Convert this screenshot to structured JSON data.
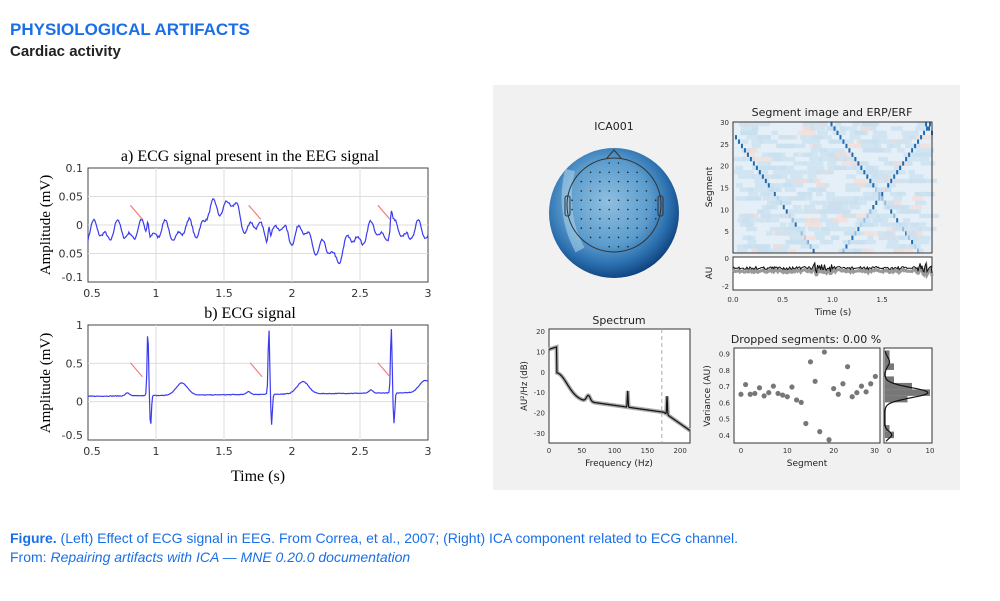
{
  "slide": {
    "title": "PHYSIOLOGICAL ARTIFACTS",
    "subtitle": "Cardiac activity"
  },
  "left_figure": {
    "panel_a": {
      "title": "a)  ECG signal present in the EEG signal",
      "ylabel": "Amplitude (mV)",
      "yticks": [
        "0.1",
        "0.05",
        "0",
        "0.05",
        "-0.1"
      ],
      "xticks": [
        "0.5",
        "1",
        "1.5",
        "2",
        "2.5",
        "3"
      ]
    },
    "panel_b": {
      "title": "b) ECG signal",
      "ylabel": "Amplitude (mV)",
      "yticks": [
        "1",
        "0.5",
        "0",
        "-0.5"
      ],
      "xticks": [
        "0.5",
        "1",
        "1.5",
        "2",
        "2.5",
        "3"
      ],
      "xlabel": "Time (s)"
    },
    "line_color": "#3b3bf0",
    "arrow_color": "#f08080"
  },
  "right_figure": {
    "topomap": {
      "title": "ICA001"
    },
    "segment_image": {
      "title": "Segment image and ERP/ERF",
      "ylabel": "Segment",
      "yticks": [
        "30",
        "25",
        "20",
        "15",
        "10",
        "5"
      ],
      "erp_ylabel": "AU",
      "erp_yticks": [
        "0",
        "-2"
      ],
      "xticks": [
        "0.0",
        "0.5",
        "1.0",
        "1.5"
      ],
      "xlabel": "Time (s)"
    },
    "spectrum": {
      "title": "Spectrum",
      "ylabel": "AU²/Hz (dB)",
      "yticks": [
        "20",
        "10",
        "0",
        "-10",
        "-20",
        "-30"
      ],
      "xticks": [
        "0",
        "50",
        "100",
        "150",
        "200"
      ],
      "xlabel": "Frequency (Hz)"
    },
    "dropped": {
      "title": "Dropped segments: 0.00 %",
      "ylabel": "Variance (AU)",
      "yticks": [
        "0.9",
        "0.8",
        "0.7",
        "0.6",
        "0.5",
        "0.4"
      ],
      "xticks": [
        "0",
        "10",
        "20",
        "30"
      ],
      "xlabel": "Segment",
      "hist_xticks": [
        "0",
        "10"
      ],
      "variance": [
        0.65,
        0.71,
        0.65,
        0.655,
        0.69,
        0.64,
        0.66,
        0.7,
        0.655,
        0.645,
        0.635,
        0.695,
        0.615,
        0.6,
        0.47,
        0.85,
        0.73,
        0.42,
        0.91,
        0.37,
        0.685,
        0.65,
        0.715,
        0.82,
        0.635,
        0.66,
        0.7,
        0.665,
        0.715,
        0.76
      ]
    }
  },
  "caption": {
    "figure_label": "Figure.",
    "line1": " (Left) Effect of ECG signal in EEG. From Correa, et al., 2007; (Right) ICA component related to ECG channel.",
    "from_label": "From: ",
    "source": "Repairing artifacts with ICA — MNE 0.20.0 documentation"
  }
}
